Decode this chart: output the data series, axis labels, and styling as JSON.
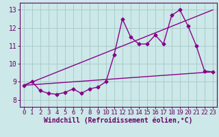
{
  "xlabel": "Windchill (Refroidissement éolien,°C)",
  "background_color": "#cce8e8",
  "grid_color": "#aacccc",
  "line_color": "#880088",
  "x_ticks": [
    0,
    1,
    2,
    3,
    4,
    5,
    6,
    7,
    8,
    9,
    10,
    11,
    12,
    13,
    14,
    15,
    16,
    17,
    18,
    19,
    20,
    21,
    22,
    23
  ],
  "y_ticks": [
    8,
    9,
    10,
    11,
    12,
    13
  ],
  "xlim": [
    -0.5,
    23.5
  ],
  "ylim": [
    7.6,
    13.4
  ],
  "series1_x": [
    0,
    1,
    2,
    3,
    4,
    5,
    6,
    7,
    8,
    9,
    10,
    11,
    12,
    13,
    14,
    15,
    16,
    17,
    18,
    19,
    20,
    21,
    22,
    23
  ],
  "series1_y": [
    8.8,
    9.0,
    8.5,
    8.35,
    8.3,
    8.4,
    8.6,
    8.35,
    8.6,
    8.7,
    9.0,
    10.5,
    12.5,
    11.5,
    11.1,
    11.1,
    11.6,
    11.1,
    12.7,
    13.0,
    12.1,
    11.0,
    9.6,
    9.55
  ],
  "series2_x": [
    0,
    23
  ],
  "series2_y": [
    8.8,
    9.55
  ],
  "series3_x": [
    0,
    23
  ],
  "series3_y": [
    8.8,
    13.0
  ],
  "font_color": "#660066",
  "tick_fontsize": 6.5,
  "label_fontsize": 7.0
}
